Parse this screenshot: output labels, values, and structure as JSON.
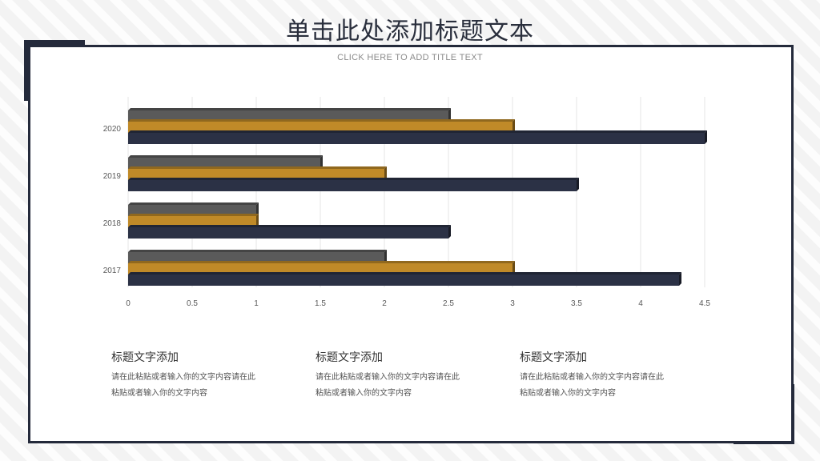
{
  "header": {
    "title": "单击此处添加标题文本",
    "subtitle": "CLICK HERE TO ADD TITLE TEXT"
  },
  "colors": {
    "series_gray": "#5a5a5a",
    "series_gold": "#c08a28",
    "series_navy": "#2b3145",
    "frame": "#242a3b"
  },
  "chart_data": {
    "type": "bar",
    "orientation": "horizontal",
    "categories": [
      "2020",
      "2019",
      "2018",
      "2017"
    ],
    "series": [
      {
        "values": [
          2.5,
          1.5,
          1.0,
          2.0
        ],
        "color": "#5a5a5a"
      },
      {
        "values": [
          3.0,
          2.0,
          1.0,
          3.0
        ],
        "color": "#c08a28"
      },
      {
        "values": [
          4.5,
          3.5,
          2.5,
          4.3
        ],
        "color": "#2b3145"
      }
    ],
    "xlim": [
      0,
      4.5
    ],
    "xticks": [
      "0",
      "0.5",
      "1",
      "1.5",
      "2",
      "2.5",
      "3",
      "3.5",
      "4",
      "4.5"
    ],
    "grid": "vertical",
    "legend": "none"
  },
  "text_blocks": [
    {
      "title": "标题文字添加",
      "line1": "请在此粘贴或者输入你的文字内容请在此",
      "line2": "粘贴或者输入你的文字内容"
    },
    {
      "title": "标题文字添加",
      "line1": "请在此粘贴或者输入你的文字内容请在此",
      "line2": "粘贴或者输入你的文字内容"
    },
    {
      "title": "标题文字添加",
      "line1": "请在此粘贴或者输入你的文字内容请在此",
      "line2": "粘贴或者输入你的文字内容"
    }
  ]
}
